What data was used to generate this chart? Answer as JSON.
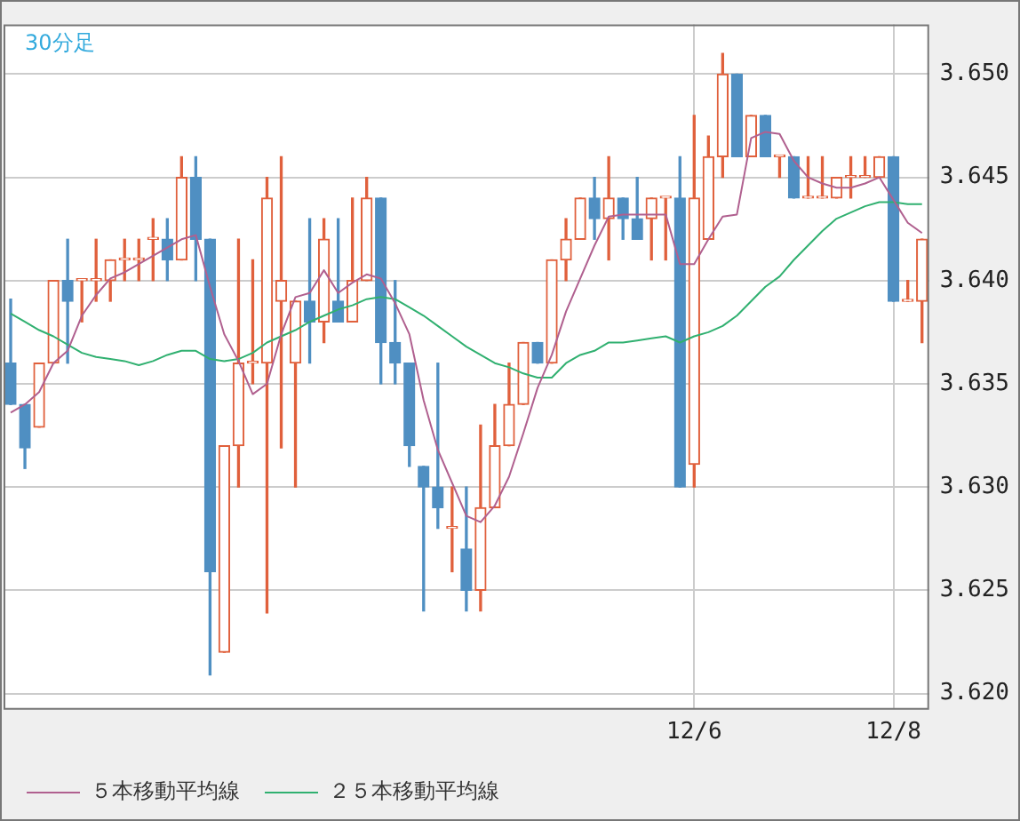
{
  "chart_data": {
    "type": "candlestick",
    "title": "30分足",
    "categories": [
      null,
      null,
      null,
      null,
      null,
      null,
      null,
      null,
      null,
      null,
      null,
      null,
      null,
      null,
      null,
      null,
      null,
      null,
      null,
      null,
      null,
      null,
      null,
      null,
      null,
      null,
      null,
      null,
      null,
      null,
      null,
      null,
      null,
      null,
      null,
      null,
      null,
      null,
      null,
      null,
      null,
      null,
      null,
      null,
      null,
      null,
      null,
      null,
      "12/6",
      null,
      null,
      null,
      null,
      null,
      null,
      null,
      null,
      null,
      null,
      null,
      null,
      null,
      "12/8",
      null,
      null
    ],
    "ohlc": [
      [
        3.636,
        3.6391,
        3.634,
        3.634
      ],
      [
        3.634,
        3.634,
        3.6309,
        3.6319
      ],
      [
        3.6329,
        3.636,
        3.6329,
        3.636
      ],
      [
        3.636,
        3.64,
        3.636,
        3.64
      ],
      [
        3.64,
        3.642,
        3.636,
        3.639
      ],
      [
        3.64,
        3.64,
        3.638,
        3.64
      ],
      [
        3.64,
        3.642,
        3.639,
        3.64
      ],
      [
        3.64,
        3.641,
        3.639,
        3.641
      ],
      [
        3.641,
        3.642,
        3.64,
        3.641
      ],
      [
        3.641,
        3.642,
        3.64,
        3.641
      ],
      [
        3.642,
        3.643,
        3.64,
        3.642
      ],
      [
        3.642,
        3.643,
        3.64,
        3.641
      ],
      [
        3.641,
        3.646,
        3.641,
        3.645
      ],
      [
        3.645,
        3.646,
        3.64,
        3.642
      ],
      [
        3.642,
        3.642,
        3.6209,
        3.6259
      ],
      [
        3.622,
        3.632,
        3.622,
        3.632
      ],
      [
        3.632,
        3.642,
        3.63,
        3.636
      ],
      [
        3.636,
        3.641,
        3.635,
        3.636
      ],
      [
        3.636,
        3.645,
        3.6239,
        3.644
      ],
      [
        3.639,
        3.646,
        3.6319,
        3.64
      ],
      [
        3.636,
        3.639,
        3.63,
        3.639
      ],
      [
        3.639,
        3.643,
        3.636,
        3.638
      ],
      [
        3.638,
        3.643,
        3.637,
        3.642
      ],
      [
        3.639,
        3.643,
        3.638,
        3.638
      ],
      [
        3.638,
        3.644,
        3.638,
        3.64
      ],
      [
        3.64,
        3.645,
        3.64,
        3.644
      ],
      [
        3.644,
        3.644,
        3.635,
        3.637
      ],
      [
        3.637,
        3.64,
        3.635,
        3.636
      ],
      [
        3.636,
        3.636,
        3.631,
        3.632
      ],
      [
        3.631,
        3.631,
        3.624,
        3.63
      ],
      [
        3.63,
        3.636,
        3.628,
        3.629
      ],
      [
        3.628,
        3.63,
        3.6259,
        3.628
      ],
      [
        3.627,
        3.63,
        3.624,
        3.625
      ],
      [
        3.625,
        3.633,
        3.624,
        3.629
      ],
      [
        3.629,
        3.634,
        3.629,
        3.632
      ],
      [
        3.632,
        3.636,
        3.632,
        3.634
      ],
      [
        3.634,
        3.637,
        3.634,
        3.637
      ],
      [
        3.637,
        3.637,
        3.636,
        3.636
      ],
      [
        3.636,
        3.641,
        3.636,
        3.641
      ],
      [
        3.641,
        3.643,
        3.64,
        3.642
      ],
      [
        3.642,
        3.644,
        3.642,
        3.644
      ],
      [
        3.644,
        3.645,
        3.642,
        3.643
      ],
      [
        3.643,
        3.646,
        3.641,
        3.644
      ],
      [
        3.644,
        3.644,
        3.642,
        3.643
      ],
      [
        3.643,
        3.645,
        3.642,
        3.642
      ],
      [
        3.643,
        3.644,
        3.641,
        3.644
      ],
      [
        3.644,
        3.644,
        3.641,
        3.644
      ],
      [
        3.644,
        3.646,
        3.63,
        3.63
      ],
      [
        3.6311,
        3.648,
        3.63,
        3.644
      ],
      [
        3.642,
        3.647,
        3.642,
        3.646
      ],
      [
        3.646,
        3.651,
        3.645,
        3.65
      ],
      [
        3.65,
        3.65,
        3.646,
        3.646
      ],
      [
        3.646,
        3.648,
        3.646,
        3.648
      ],
      [
        3.648,
        3.648,
        3.646,
        3.646
      ],
      [
        3.646,
        3.646,
        3.645,
        3.646
      ],
      [
        3.646,
        3.646,
        3.644,
        3.644
      ],
      [
        3.644,
        3.646,
        3.644,
        3.644
      ],
      [
        3.644,
        3.646,
        3.644,
        3.644
      ],
      [
        3.644,
        3.645,
        3.644,
        3.645
      ],
      [
        3.645,
        3.646,
        3.644,
        3.645
      ],
      [
        3.645,
        3.646,
        3.645,
        3.645
      ],
      [
        3.645,
        3.646,
        3.645,
        3.646
      ],
      [
        3.646,
        3.646,
        3.639,
        3.639
      ],
      [
        3.639,
        3.64,
        3.639,
        3.639
      ],
      [
        3.639,
        3.642,
        3.637,
        3.642
      ]
    ],
    "colors": [
      "#4f8fc2",
      "#4f8fc2",
      "#e0603c",
      "#e0603c",
      "#4f8fc2",
      "#e0603c",
      "#e0603c",
      "#e0603c",
      "#e0603c",
      "#e0603c",
      "#e0603c",
      "#4f8fc2",
      "#e0603c",
      "#4f8fc2",
      "#4f8fc2",
      "#e0603c",
      "#e0603c",
      "#e0603c",
      "#e0603c",
      "#e0603c",
      "#e0603c",
      "#4f8fc2",
      "#e0603c",
      "#4f8fc2",
      "#e0603c",
      "#e0603c",
      "#4f8fc2",
      "#4f8fc2",
      "#4f8fc2",
      "#4f8fc2",
      "#4f8fc2",
      "#e0603c",
      "#4f8fc2",
      "#e0603c",
      "#e0603c",
      "#e0603c",
      "#e0603c",
      "#4f8fc2",
      "#e0603c",
      "#e0603c",
      "#e0603c",
      "#4f8fc2",
      "#e0603c",
      "#4f8fc2",
      "#4f8fc2",
      "#e0603c",
      "#e0603c",
      "#4f8fc2",
      "#e0603c",
      "#e0603c",
      "#e0603c",
      "#4f8fc2",
      "#e0603c",
      "#4f8fc2",
      "#e0603c",
      "#4f8fc2",
      "#e0603c",
      "#e0603c",
      "#e0603c",
      "#e0603c",
      "#e0603c",
      "#e0603c",
      "#4f8fc2",
      "#e0603c",
      "#e0603c"
    ],
    "series": [
      {
        "name": "５本移動平均線",
        "type": "line",
        "color": "#b0608f",
        "values": [
          3.6336,
          3.634,
          3.6346,
          3.636,
          3.6366,
          3.6383,
          3.6393,
          3.6401,
          3.6404,
          3.6408,
          3.6412,
          3.6416,
          3.642,
          3.6422,
          3.6397,
          3.6374,
          3.6361,
          3.6345,
          3.635,
          3.6374,
          3.6392,
          3.6394,
          3.6405,
          3.6394,
          3.6399,
          3.6403,
          3.6401,
          3.6389,
          3.6374,
          3.6342,
          3.6318,
          3.6302,
          3.6286,
          3.6283,
          3.6291,
          3.6305,
          3.6326,
          3.6348,
          3.6364,
          3.6385,
          3.6401,
          3.6417,
          3.6431,
          3.6432,
          3.6432,
          3.6432,
          3.6432,
          3.6408,
          3.6408,
          3.642,
          3.6431,
          3.6432,
          3.6469,
          3.6472,
          3.6471,
          3.6458,
          3.645,
          3.6447,
          3.6445,
          3.6445,
          3.6447,
          3.645,
          3.6439,
          3.6428,
          3.6423
        ]
      },
      {
        "name": "２５本移動平均線",
        "type": "line",
        "color": "#30b070",
        "values": [
          3.6384,
          3.638,
          3.6376,
          3.6373,
          3.6369,
          3.6365,
          3.6363,
          3.6362,
          3.6361,
          3.6359,
          3.6361,
          3.6364,
          3.6366,
          3.6366,
          3.6362,
          3.6361,
          3.6362,
          3.6365,
          3.637,
          3.6373,
          3.6376,
          3.638,
          3.6383,
          3.6386,
          3.6388,
          3.6391,
          3.6392,
          3.6391,
          3.6387,
          3.6383,
          3.6378,
          3.6373,
          3.6368,
          3.6364,
          3.636,
          3.6358,
          3.6355,
          3.6353,
          3.6353,
          3.636,
          3.6364,
          3.6366,
          3.637,
          3.637,
          3.6371,
          3.6372,
          3.6373,
          3.637,
          3.6373,
          3.6375,
          3.6378,
          3.6383,
          3.639,
          3.6397,
          3.6402,
          3.641,
          3.6417,
          3.6424,
          3.643,
          3.6433,
          3.6436,
          3.6438,
          3.6438,
          3.6437,
          3.6437
        ]
      }
    ],
    "ylim": [
      3.6193,
      3.6524
    ],
    "yticks": [
      {
        "value": 3.62,
        "label": "3.620"
      },
      {
        "value": 3.625,
        "label": "3.625"
      },
      {
        "value": 3.63,
        "label": "3.630"
      },
      {
        "value": 3.635,
        "label": "3.635"
      },
      {
        "value": 3.64,
        "label": "3.640"
      },
      {
        "value": 3.645,
        "label": "3.645"
      },
      {
        "value": 3.65,
        "label": "3.650"
      }
    ],
    "grid": true,
    "legend": "bottom"
  }
}
